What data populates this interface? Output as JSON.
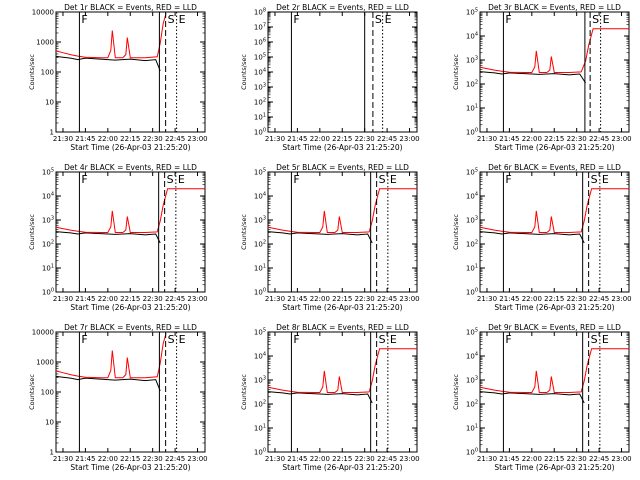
{
  "figure": {
    "tick_labels_x": [
      "21:30",
      "21:45",
      "22:00",
      "22:15",
      "22:30",
      "22:45",
      "23:00"
    ]
  },
  "chart_data": [
    {
      "type": "line",
      "title": "Det 1r  BLACK = Events, RED = LLD",
      "xlabel": "Start Time (26-Apr-03 21:25:20)",
      "ylabel": "Counts/sec",
      "yscale": "log",
      "ylim": [
        1,
        10000
      ],
      "ytick_style": "plain",
      "xlim": [
        "21:25:20",
        "23:05:00"
      ],
      "xticks": [
        "21:30",
        "21:45",
        "22:00",
        "22:15",
        "22:30",
        "22:45",
        "23:00"
      ],
      "markers": [
        {
          "time": "21:41:00",
          "style": "solid",
          "label": "F"
        },
        {
          "time": "22:34:30",
          "style": "solid",
          "label": ""
        },
        {
          "time": "22:38:40",
          "style": "dashed",
          "label": "S"
        },
        {
          "time": "22:46:00",
          "style": "dotted",
          "label": "E"
        }
      ],
      "series": [
        {
          "color": "#000000",
          "x": [
            "21:25:20",
            "21:30",
            "21:35",
            "21:40",
            "21:45",
            "21:55",
            "22:05",
            "22:15",
            "22:25",
            "22:32",
            "22:35"
          ],
          "y": [
            330,
            310,
            290,
            260,
            290,
            270,
            250,
            270,
            240,
            260,
            110
          ]
        },
        {
          "color": "#ff0000",
          "x": [
            "21:25:20",
            "21:30",
            "21:35",
            "21:40",
            "21:45",
            "21:55",
            "22:00",
            "22:02",
            "22:03",
            "22:05",
            "22:10",
            "22:12",
            "22:13",
            "22:15",
            "22:25",
            "22:33",
            "22:35",
            "22:37",
            "22:39"
          ],
          "y": [
            500,
            440,
            380,
            340,
            310,
            300,
            300,
            520,
            2400,
            300,
            300,
            380,
            1400,
            300,
            300,
            320,
            900,
            4000,
            9000
          ]
        }
      ]
    },
    {
      "type": "line",
      "title": "Det 2r  BLACK = Events, RED = LLD",
      "xlabel": "Start Time (26-Apr-03 21:25:20)",
      "ylabel": "Counts/sec",
      "yscale": "log",
      "ylim": [
        1,
        100000000
      ],
      "ytick_style": "exp",
      "xlim": [
        "21:25:20",
        "23:05:00"
      ],
      "xticks": [
        "21:30",
        "21:45",
        "22:00",
        "22:15",
        "22:30",
        "22:45",
        "23:00"
      ],
      "markers": [
        {
          "time": "21:41:00",
          "style": "solid",
          "label": "F"
        },
        {
          "time": "22:30:00",
          "style": "solid",
          "label": ""
        },
        {
          "time": "22:35:30",
          "style": "dashed",
          "label": "S"
        },
        {
          "time": "22:42:00",
          "style": "dotted",
          "label": "E"
        }
      ],
      "series": []
    },
    {
      "type": "line",
      "title": "Det 3r  BLACK = Events, RED = LLD",
      "xlabel": "Start Time (26-Apr-03 21:25:20)",
      "ylabel": "Counts/sec",
      "yscale": "log",
      "ylim": [
        1,
        100000
      ],
      "ytick_style": "exp",
      "xlim": [
        "21:25:20",
        "23:05:00"
      ],
      "xticks": [
        "21:30",
        "21:45",
        "22:00",
        "22:15",
        "22:30",
        "22:45",
        "23:00"
      ],
      "markers": [
        {
          "time": "21:41:00",
          "style": "solid",
          "label": "F"
        },
        {
          "time": "22:35:30",
          "style": "solid",
          "label": ""
        },
        {
          "time": "22:39:00",
          "style": "dashed",
          "label": "S"
        },
        {
          "time": "22:46:00",
          "style": "dotted",
          "label": "E"
        }
      ],
      "series": [
        {
          "color": "#000000",
          "x": [
            "21:25:20",
            "21:30",
            "21:35",
            "21:40",
            "21:45",
            "21:55",
            "22:05",
            "22:15",
            "22:25",
            "22:32",
            "22:36"
          ],
          "y": [
            330,
            310,
            290,
            260,
            290,
            270,
            250,
            270,
            240,
            260,
            110
          ]
        },
        {
          "color": "#ff0000",
          "x": [
            "21:25:20",
            "21:30",
            "21:35",
            "21:40",
            "21:45",
            "21:55",
            "22:00",
            "22:02",
            "22:03",
            "22:05",
            "22:10",
            "22:12",
            "22:13",
            "22:15",
            "22:25",
            "22:33",
            "22:36",
            "22:38",
            "22:41",
            "23:05"
          ],
          "y": [
            500,
            440,
            380,
            340,
            310,
            300,
            300,
            520,
            2400,
            300,
            300,
            380,
            1400,
            300,
            300,
            320,
            900,
            4000,
            20000,
            20000
          ]
        }
      ]
    },
    {
      "type": "line",
      "title": "Det 4r  BLACK = Events, RED = LLD",
      "xlabel": "Start Time (26-Apr-03 21:25:20)",
      "ylabel": "Counts/sec",
      "yscale": "log",
      "ylim": [
        1,
        100000
      ],
      "ytick_style": "exp",
      "xlim": [
        "21:25:20",
        "23:05:00"
      ],
      "xticks": [
        "21:30",
        "21:45",
        "22:00",
        "22:15",
        "22:30",
        "22:45",
        "23:00"
      ],
      "markers": [
        {
          "time": "21:41:00",
          "style": "solid",
          "label": "F"
        },
        {
          "time": "22:34:00",
          "style": "solid",
          "label": ""
        },
        {
          "time": "22:38:00",
          "style": "dashed",
          "label": "S"
        },
        {
          "time": "22:45:30",
          "style": "dotted",
          "label": "E"
        }
      ],
      "series": [
        {
          "color": "#000000",
          "x": [
            "21:25:20",
            "21:30",
            "21:35",
            "21:40",
            "21:45",
            "21:55",
            "22:05",
            "22:15",
            "22:25",
            "22:32",
            "22:35"
          ],
          "y": [
            330,
            310,
            290,
            260,
            290,
            270,
            250,
            270,
            240,
            260,
            110
          ]
        },
        {
          "color": "#ff0000",
          "x": [
            "21:25:20",
            "21:30",
            "21:35",
            "21:40",
            "21:45",
            "21:55",
            "22:00",
            "22:02",
            "22:03",
            "22:05",
            "22:10",
            "22:12",
            "22:13",
            "22:15",
            "22:25",
            "22:33",
            "22:35",
            "22:37",
            "22:40",
            "23:05"
          ],
          "y": [
            500,
            440,
            380,
            340,
            310,
            300,
            300,
            520,
            2400,
            300,
            300,
            380,
            1400,
            300,
            300,
            320,
            900,
            4000,
            20000,
            20000
          ]
        }
      ]
    },
    {
      "type": "line",
      "title": "Det 5r  BLACK = Events, RED = LLD",
      "xlabel": "Start Time (26-Apr-03 21:25:20)",
      "ylabel": "Counts/sec",
      "yscale": "log",
      "ylim": [
        1,
        100000
      ],
      "ytick_style": "exp",
      "xlim": [
        "21:25:20",
        "23:05:00"
      ],
      "xticks": [
        "21:30",
        "21:45",
        "22:00",
        "22:15",
        "22:30",
        "22:45",
        "23:00"
      ],
      "markers": [
        {
          "time": "21:41:00",
          "style": "solid",
          "label": "F"
        },
        {
          "time": "22:34:00",
          "style": "solid",
          "label": ""
        },
        {
          "time": "22:38:00",
          "style": "dashed",
          "label": "S"
        },
        {
          "time": "22:45:30",
          "style": "dotted",
          "label": "E"
        }
      ],
      "series": [
        {
          "color": "#000000",
          "x": [
            "21:25:20",
            "21:30",
            "21:35",
            "21:40",
            "21:45",
            "21:55",
            "22:05",
            "22:15",
            "22:25",
            "22:32",
            "22:35"
          ],
          "y": [
            330,
            310,
            290,
            260,
            290,
            270,
            250,
            270,
            240,
            260,
            110
          ]
        },
        {
          "color": "#ff0000",
          "x": [
            "21:25:20",
            "21:30",
            "21:35",
            "21:40",
            "21:45",
            "21:55",
            "22:00",
            "22:02",
            "22:03",
            "22:05",
            "22:10",
            "22:12",
            "22:13",
            "22:15",
            "22:25",
            "22:33",
            "22:35",
            "22:37",
            "22:40",
            "23:05"
          ],
          "y": [
            500,
            440,
            380,
            340,
            310,
            300,
            300,
            520,
            2400,
            300,
            300,
            380,
            1400,
            300,
            300,
            320,
            900,
            4000,
            20000,
            20000
          ]
        }
      ]
    },
    {
      "type": "line",
      "title": "Det 6r  BLACK = Events, RED = LLD",
      "xlabel": "Start Time (26-Apr-03 21:25:20)",
      "ylabel": "Counts/sec",
      "yscale": "log",
      "ylim": [
        1,
        100000
      ],
      "ytick_style": "exp",
      "xlim": [
        "21:25:20",
        "23:05:00"
      ],
      "xticks": [
        "21:30",
        "21:45",
        "22:00",
        "22:15",
        "22:30",
        "22:45",
        "23:00"
      ],
      "markers": [
        {
          "time": "21:41:00",
          "style": "solid",
          "label": "F"
        },
        {
          "time": "22:34:00",
          "style": "solid",
          "label": ""
        },
        {
          "time": "22:38:00",
          "style": "dashed",
          "label": "S"
        },
        {
          "time": "22:45:30",
          "style": "dotted",
          "label": "E"
        }
      ],
      "series": [
        {
          "color": "#000000",
          "x": [
            "21:25:20",
            "21:30",
            "21:35",
            "21:40",
            "21:45",
            "21:55",
            "22:05",
            "22:15",
            "22:25",
            "22:32",
            "22:35"
          ],
          "y": [
            330,
            310,
            290,
            260,
            290,
            270,
            250,
            270,
            240,
            260,
            110
          ]
        },
        {
          "color": "#ff0000",
          "x": [
            "21:25:20",
            "21:30",
            "21:35",
            "21:40",
            "21:45",
            "21:55",
            "22:00",
            "22:02",
            "22:03",
            "22:05",
            "22:10",
            "22:12",
            "22:13",
            "22:15",
            "22:25",
            "22:33",
            "22:35",
            "22:37",
            "22:40",
            "23:05"
          ],
          "y": [
            500,
            440,
            380,
            340,
            310,
            300,
            300,
            520,
            2400,
            300,
            300,
            380,
            1400,
            300,
            300,
            320,
            900,
            4000,
            20000,
            20000
          ]
        }
      ]
    },
    {
      "type": "line",
      "title": "Det 7r  BLACK = Events, RED = LLD",
      "xlabel": "Start Time (26-Apr-03 21:25:20)",
      "ylabel": "Counts/sec",
      "yscale": "log",
      "ylim": [
        1,
        10000
      ],
      "ytick_style": "plain",
      "xlim": [
        "21:25:20",
        "23:05:00"
      ],
      "xticks": [
        "21:30",
        "21:45",
        "22:00",
        "22:15",
        "22:30",
        "22:45",
        "23:00"
      ],
      "markers": [
        {
          "time": "21:41:00",
          "style": "solid",
          "label": "F"
        },
        {
          "time": "22:34:30",
          "style": "solid",
          "label": ""
        },
        {
          "time": "22:38:40",
          "style": "dashed",
          "label": "S"
        },
        {
          "time": "22:46:00",
          "style": "dotted",
          "label": "E"
        }
      ],
      "series": [
        {
          "color": "#000000",
          "x": [
            "21:25:20",
            "21:30",
            "21:35",
            "21:40",
            "21:45",
            "21:55",
            "22:05",
            "22:15",
            "22:25",
            "22:32",
            "22:35"
          ],
          "y": [
            330,
            310,
            290,
            260,
            290,
            270,
            250,
            270,
            240,
            260,
            110
          ]
        },
        {
          "color": "#ff0000",
          "x": [
            "21:25:20",
            "21:30",
            "21:35",
            "21:40",
            "21:45",
            "21:55",
            "22:00",
            "22:02",
            "22:03",
            "22:05",
            "22:10",
            "22:12",
            "22:13",
            "22:15",
            "22:25",
            "22:33",
            "22:35",
            "22:37",
            "22:39"
          ],
          "y": [
            500,
            440,
            380,
            340,
            310,
            300,
            300,
            520,
            2400,
            300,
            300,
            380,
            1400,
            300,
            300,
            320,
            900,
            4000,
            9000
          ]
        }
      ]
    },
    {
      "type": "line",
      "title": "Det 8r  BLACK = Events, RED = LLD",
      "xlabel": "Start Time (26-Apr-03 21:25:20)",
      "ylabel": "Counts/sec",
      "yscale": "log",
      "ylim": [
        1,
        100000
      ],
      "ytick_style": "exp",
      "xlim": [
        "21:25:20",
        "23:05:00"
      ],
      "xticks": [
        "21:30",
        "21:45",
        "22:00",
        "22:15",
        "22:30",
        "22:45",
        "23:00"
      ],
      "markers": [
        {
          "time": "21:41:00",
          "style": "solid",
          "label": "F"
        },
        {
          "time": "22:34:00",
          "style": "solid",
          "label": ""
        },
        {
          "time": "22:38:00",
          "style": "dashed",
          "label": "S"
        },
        {
          "time": "22:45:30",
          "style": "dotted",
          "label": "E"
        }
      ],
      "series": [
        {
          "color": "#000000",
          "x": [
            "21:25:20",
            "21:30",
            "21:35",
            "21:40",
            "21:45",
            "21:55",
            "22:05",
            "22:15",
            "22:25",
            "22:32",
            "22:35"
          ],
          "y": [
            330,
            310,
            290,
            260,
            290,
            270,
            250,
            270,
            240,
            260,
            110
          ]
        },
        {
          "color": "#ff0000",
          "x": [
            "21:25:20",
            "21:30",
            "21:35",
            "21:40",
            "21:45",
            "21:55",
            "22:00",
            "22:02",
            "22:03",
            "22:05",
            "22:10",
            "22:12",
            "22:13",
            "22:15",
            "22:25",
            "22:33",
            "22:35",
            "22:37",
            "22:40",
            "23:05"
          ],
          "y": [
            500,
            440,
            380,
            340,
            310,
            300,
            300,
            520,
            2400,
            300,
            300,
            380,
            1400,
            300,
            300,
            320,
            900,
            4000,
            20000,
            20000
          ]
        }
      ]
    },
    {
      "type": "line",
      "title": "Det 9r  BLACK = Events, RED = LLD",
      "xlabel": "Start Time (26-Apr-03 21:25:20)",
      "ylabel": "Counts/sec",
      "yscale": "log",
      "ylim": [
        1,
        100000
      ],
      "ytick_style": "exp",
      "xlim": [
        "21:25:20",
        "23:05:00"
      ],
      "xticks": [
        "21:30",
        "21:45",
        "22:00",
        "22:15",
        "22:30",
        "22:45",
        "23:00"
      ],
      "markers": [
        {
          "time": "21:41:00",
          "style": "solid",
          "label": "F"
        },
        {
          "time": "22:34:00",
          "style": "solid",
          "label": ""
        },
        {
          "time": "22:38:00",
          "style": "dashed",
          "label": "S"
        },
        {
          "time": "22:45:30",
          "style": "dotted",
          "label": "E"
        }
      ],
      "series": [
        {
          "color": "#000000",
          "x": [
            "21:25:20",
            "21:30",
            "21:35",
            "21:40",
            "21:45",
            "21:55",
            "22:05",
            "22:15",
            "22:25",
            "22:32",
            "22:35"
          ],
          "y": [
            330,
            310,
            290,
            260,
            290,
            270,
            250,
            270,
            240,
            260,
            110
          ]
        },
        {
          "color": "#ff0000",
          "x": [
            "21:25:20",
            "21:30",
            "21:35",
            "21:40",
            "21:45",
            "21:55",
            "22:00",
            "22:02",
            "22:03",
            "22:05",
            "22:10",
            "22:12",
            "22:13",
            "22:15",
            "22:25",
            "22:33",
            "22:35",
            "22:37",
            "22:40",
            "23:05"
          ],
          "y": [
            500,
            440,
            380,
            340,
            310,
            300,
            300,
            520,
            2400,
            300,
            300,
            380,
            1400,
            300,
            300,
            320,
            900,
            4000,
            20000,
            20000
          ]
        }
      ]
    }
  ]
}
